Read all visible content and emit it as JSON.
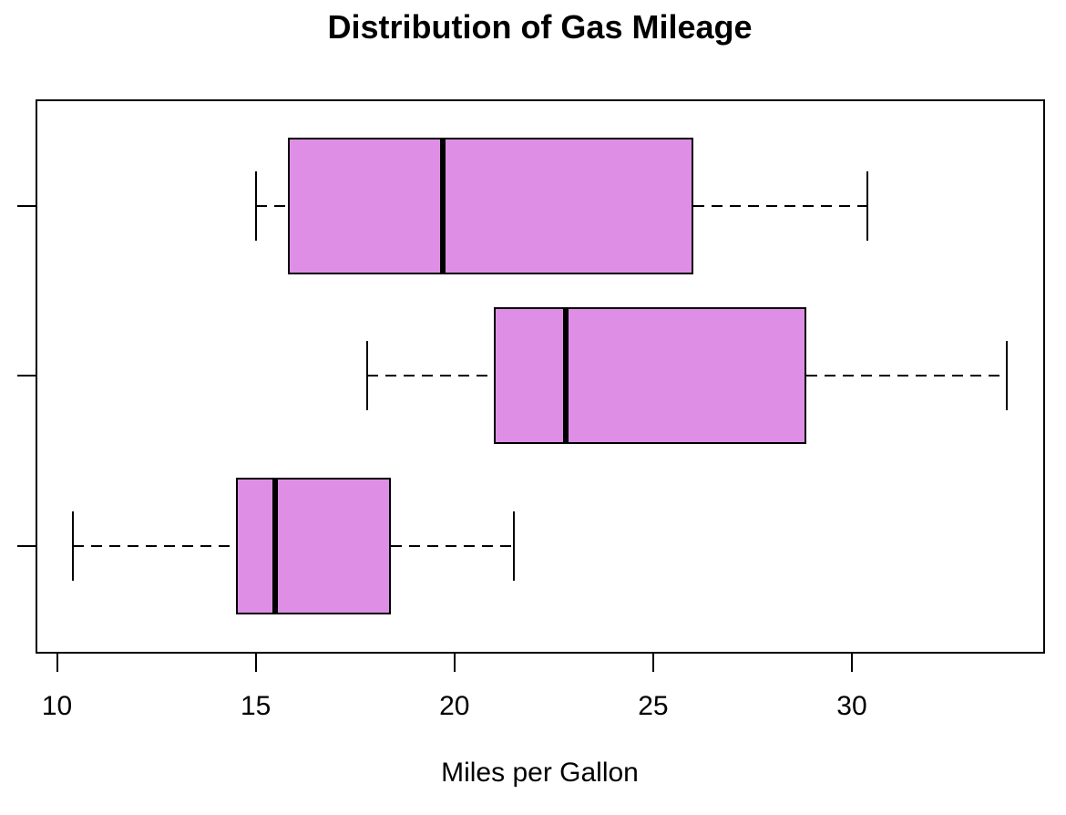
{
  "title": "Distribution of Gas Mileage",
  "xlabel": "Miles per Gallon",
  "chart_data": {
    "type": "boxplot",
    "orientation": "horizontal",
    "title": "Distribution of Gas Mileage",
    "xlabel": "Miles per Gallon",
    "x_ticks": [
      "10",
      "15",
      "20",
      "25",
      "30"
    ],
    "x_tick_values": [
      10,
      15,
      20,
      25,
      30
    ],
    "xlim": [
      9.46,
      34.86
    ],
    "grid": false,
    "legend": false,
    "y_axis_labels": [],
    "box_fill_color": "#DE8FE5",
    "line_color": "#000000",
    "groups_top_to_bottom": [
      {
        "min": 15.0,
        "q1": 15.8,
        "median": 19.7,
        "q3": 26.0,
        "max": 30.4
      },
      {
        "min": 17.8,
        "q1": 21.0,
        "median": 22.8,
        "q3": 28.85,
        "max": 33.9
      },
      {
        "min": 10.4,
        "q1": 14.5,
        "median": 15.5,
        "q3": 18.4,
        "max": 21.5
      }
    ]
  }
}
